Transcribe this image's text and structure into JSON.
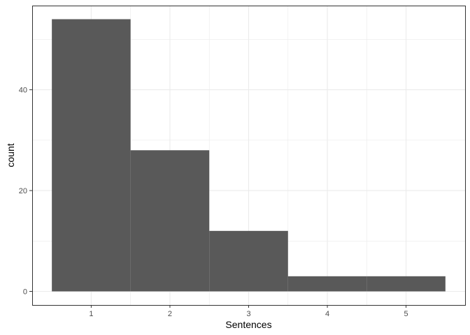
{
  "chart_data": {
    "type": "bar",
    "subtype": "histogram",
    "categories": [
      "1",
      "2",
      "3",
      "4",
      "5"
    ],
    "values": [
      54,
      28,
      12,
      3,
      3
    ],
    "xlabel": "Sentences",
    "ylabel": "count",
    "xlim": [
      0.5,
      5.5
    ],
    "ylim": [
      0,
      54
    ],
    "x_ticks": [
      "1",
      "2",
      "3",
      "4",
      "5"
    ],
    "y_ticks": [
      "0",
      "20",
      "40"
    ],
    "y_tick_values": [
      0,
      20,
      40
    ],
    "bar_color": "#595959",
    "grid": true,
    "grid_color": "#ebebeb",
    "panel_border_color": "#333333",
    "legend": "none",
    "theme": "bw"
  }
}
